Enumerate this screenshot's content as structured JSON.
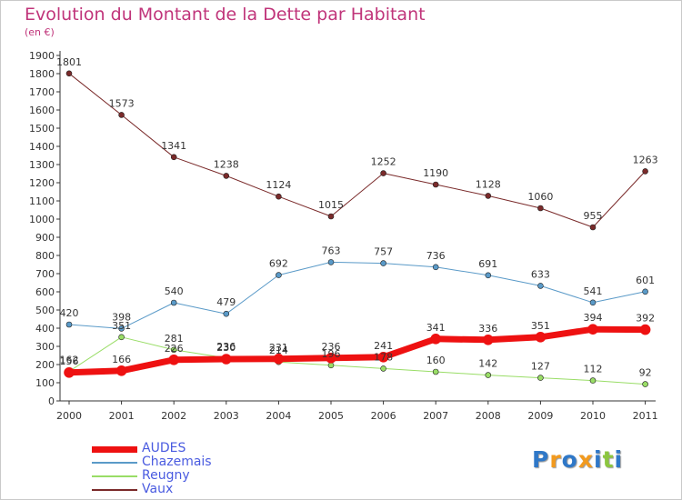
{
  "chart_data": {
    "type": "line",
    "title": "Evolution du Montant de la Dette par Habitant",
    "subtitle": "(en €)",
    "x": [
      "2000",
      "2001",
      "2002",
      "2003",
      "2004",
      "2005",
      "2006",
      "2007",
      "2008",
      "2009",
      "2010",
      "2011"
    ],
    "yticks": [
      0,
      100,
      200,
      300,
      400,
      500,
      600,
      700,
      800,
      900,
      1000,
      1100,
      1200,
      1300,
      1400,
      1500,
      1600,
      1700,
      1800,
      1900
    ],
    "ylim": [
      0,
      1900
    ],
    "grid": false,
    "legend_position": "bottom-left",
    "series": [
      {
        "name": "Vaux",
        "color": "#7a2a2a",
        "width": 1,
        "values": [
          1801,
          1573,
          1341,
          1238,
          1124,
          1015,
          1252,
          1190,
          1128,
          1060,
          955,
          1263
        ]
      },
      {
        "name": "Chazemais",
        "color": "#5a9ac8",
        "width": 1,
        "values": [
          420,
          398,
          540,
          479,
          692,
          763,
          757,
          736,
          691,
          633,
          541,
          601
        ]
      },
      {
        "name": "Reugny",
        "color": "#99dd66",
        "width": 1,
        "values": [
          162,
          351,
          281,
          236,
          214,
          196,
          178,
          160,
          142,
          127,
          112,
          92
        ]
      },
      {
        "name": "AUDES",
        "color": "#ee1111",
        "width": 7,
        "values": [
          156,
          166,
          226,
          230,
          231,
          236,
          241,
          341,
          336,
          351,
          394,
          392
        ]
      }
    ]
  },
  "legend": [
    {
      "label": "AUDES",
      "color": "#ee1111",
      "thickness": 7
    },
    {
      "label": "Chazemais",
      "color": "#5a9ac8",
      "thickness": 2
    },
    {
      "label": "Reugny",
      "color": "#99dd66",
      "thickness": 2
    },
    {
      "label": "Vaux",
      "color": "#7a2a2a",
      "thickness": 2
    }
  ],
  "logo": {
    "letters": [
      "P",
      "r",
      "o",
      "x",
      "i",
      "t",
      "i"
    ],
    "colors": [
      "#2f78c8",
      "#f29a1e",
      "#2f78c8",
      "#f29a1e",
      "#2f78c8",
      "#8cc63f",
      "#2f78c8"
    ]
  }
}
